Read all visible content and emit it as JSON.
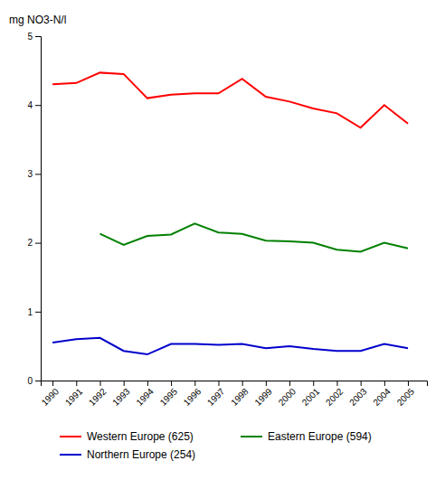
{
  "chart_data": {
    "type": "line",
    "ylabel": "mg NO3-N/l",
    "x": [
      1990,
      1991,
      1992,
      1993,
      1994,
      1995,
      1996,
      1997,
      1998,
      1999,
      2000,
      2001,
      2002,
      2003,
      2004,
      2005
    ],
    "series": [
      {
        "name": "Western Europe (625)",
        "color": "#FF0000",
        "values": [
          4.3,
          4.32,
          4.47,
          4.45,
          4.1,
          4.15,
          4.17,
          4.17,
          4.38,
          4.12,
          4.05,
          3.95,
          3.88,
          3.67,
          4.0,
          3.73
        ]
      },
      {
        "name": "Eastern Europe (594)",
        "color": "#008000",
        "values": [
          null,
          null,
          2.13,
          1.97,
          2.1,
          2.12,
          2.28,
          2.15,
          2.13,
          2.03,
          2.02,
          2.0,
          1.9,
          1.87,
          2.0,
          1.92
        ]
      },
      {
        "name": "Northern Europe (254)",
        "color": "#0000CC",
        "values": [
          0.55,
          0.6,
          0.62,
          0.43,
          0.38,
          0.53,
          0.53,
          0.52,
          0.53,
          0.47,
          0.5,
          0.46,
          0.43,
          0.43,
          0.53,
          0.47
        ]
      }
    ],
    "xlim": [
      1989.5,
      2005.8
    ],
    "xticks": [
      1990,
      1991,
      1992,
      1993,
      1994,
      1995,
      1996,
      1997,
      1998,
      1999,
      2000,
      2001,
      2002,
      2003,
      2004,
      2005
    ],
    "ylim": [
      0,
      5
    ],
    "yticks": [
      0,
      1,
      2,
      3,
      4,
      5
    ],
    "legend": "bottom"
  }
}
